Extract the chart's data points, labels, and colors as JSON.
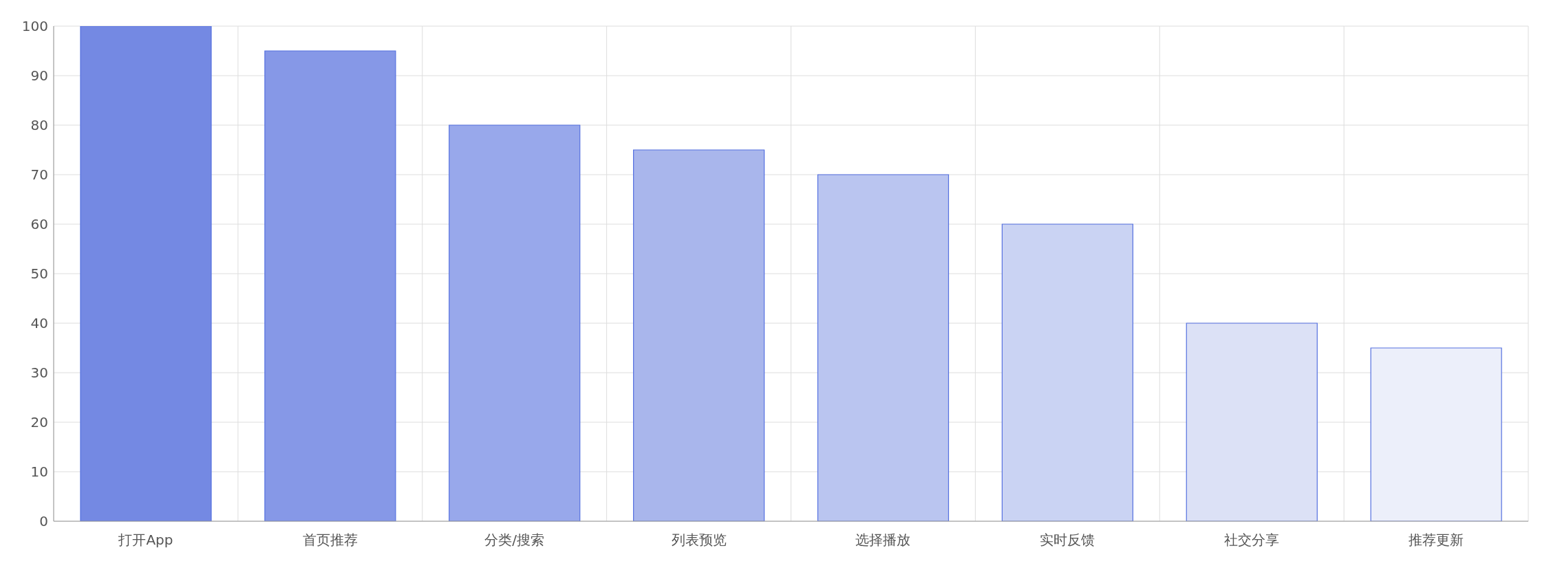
{
  "chart_data": {
    "type": "bar",
    "categories": [
      "打开App",
      "首页推荐",
      "分类/搜索",
      "列表预览",
      "选择播放",
      "实时反馈",
      "社交分享",
      "推荐更新"
    ],
    "values": [
      100,
      95,
      80,
      75,
      70,
      60,
      40,
      35
    ],
    "colors": [
      "#7489e3",
      "#8698e7",
      "#98a8eb",
      "#a9b6ec",
      "#bac5f0",
      "#cad3f3",
      "#dce1f6",
      "#eceffa"
    ],
    "ylim": [
      0,
      100
    ],
    "yticks": [
      0,
      10,
      20,
      30,
      40,
      50,
      60,
      70,
      80,
      90,
      100
    ],
    "grid": true
  }
}
